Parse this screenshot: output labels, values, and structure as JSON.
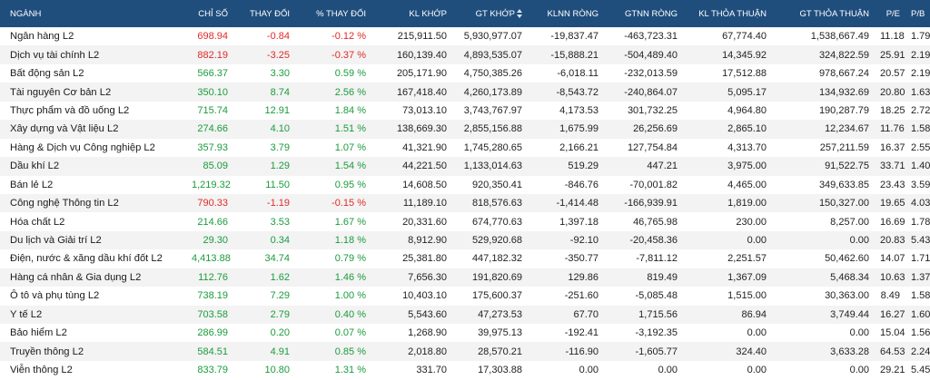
{
  "colors": {
    "header_bg": "#1f4e7d",
    "up": "#1a9c3c",
    "down": "#e02a2a",
    "zebra": "#f3f3f3"
  },
  "columns": [
    "NGÀNH",
    "CHỈ SỐ",
    "THAY ĐỔI",
    "% THAY ĐỔI",
    "KL KHỚP",
    "GT KHỚP",
    "KLNN RÒNG",
    "GTNN RÒNG",
    "KL THỎA THUẬN",
    "GT THỎA THUẬN",
    "P/E",
    "P/B"
  ],
  "sort_icon": "sort-arrows-icon",
  "rows": [
    {
      "name": "Ngân hàng L2",
      "index": "698.94",
      "change": "-0.84",
      "pct": "-0.12 %",
      "trend": "down",
      "kl_khop": "215,911.50",
      "gt_khop": "5,930,977.07",
      "klnn": "-19,837.47",
      "gtnn": "-463,723.31",
      "kl_tt": "67,774.40",
      "gt_tt": "1,538,667.49",
      "pe": "11.18",
      "pb": "1.79"
    },
    {
      "name": "Dịch vụ tài chính L2",
      "index": "882.19",
      "change": "-3.25",
      "pct": "-0.37 %",
      "trend": "down",
      "kl_khop": "160,139.40",
      "gt_khop": "4,893,535.07",
      "klnn": "-15,888.21",
      "gtnn": "-504,489.40",
      "kl_tt": "14,345.92",
      "gt_tt": "324,822.59",
      "pe": "25.91",
      "pb": "2.19"
    },
    {
      "name": "Bất động sản L2",
      "index": "566.37",
      "change": "3.30",
      "pct": "0.59 %",
      "trend": "up",
      "kl_khop": "205,171.90",
      "gt_khop": "4,750,385.26",
      "klnn": "-6,018.11",
      "gtnn": "-232,013.59",
      "kl_tt": "17,512.88",
      "gt_tt": "978,667.24",
      "pe": "20.57",
      "pb": "2.19"
    },
    {
      "name": "Tài nguyên Cơ bản L2",
      "index": "350.10",
      "change": "8.74",
      "pct": "2.56 %",
      "trend": "up",
      "kl_khop": "167,418.40",
      "gt_khop": "4,260,173.89",
      "klnn": "-8,543.72",
      "gtnn": "-240,864.07",
      "kl_tt": "5,095.17",
      "gt_tt": "134,932.69",
      "pe": "20.80",
      "pb": "1.63"
    },
    {
      "name": "Thực phẩm và đồ uống L2",
      "index": "715.74",
      "change": "12.91",
      "pct": "1.84 %",
      "trend": "up",
      "kl_khop": "73,013.10",
      "gt_khop": "3,743,767.97",
      "klnn": "4,173.53",
      "gtnn": "301,732.25",
      "kl_tt": "4,964.80",
      "gt_tt": "190,287.79",
      "pe": "18.25",
      "pb": "2.72"
    },
    {
      "name": "Xây dựng và Vật liệu L2",
      "index": "274.66",
      "change": "4.10",
      "pct": "1.51 %",
      "trend": "up",
      "kl_khop": "138,669.30",
      "gt_khop": "2,855,156.88",
      "klnn": "1,675.99",
      "gtnn": "26,256.69",
      "kl_tt": "2,865.10",
      "gt_tt": "12,234.67",
      "pe": "11.76",
      "pb": "1.58"
    },
    {
      "name": "Hàng & Dịch vụ Công nghiệp L2",
      "index": "357.93",
      "change": "3.79",
      "pct": "1.07 %",
      "trend": "up",
      "kl_khop": "41,321.90",
      "gt_khop": "1,745,280.65",
      "klnn": "2,166.21",
      "gtnn": "127,754.84",
      "kl_tt": "4,313.70",
      "gt_tt": "257,211.59",
      "pe": "16.37",
      "pb": "2.55"
    },
    {
      "name": "Dầu khí L2",
      "index": "85.09",
      "change": "1.29",
      "pct": "1.54 %",
      "trend": "up",
      "kl_khop": "44,221.50",
      "gt_khop": "1,133,014.63",
      "klnn": "519.29",
      "gtnn": "447.21",
      "kl_tt": "3,975.00",
      "gt_tt": "91,522.75",
      "pe": "33.71",
      "pb": "1.40"
    },
    {
      "name": "Bán lẻ L2",
      "index": "1,219.32",
      "change": "11.50",
      "pct": "0.95 %",
      "trend": "up",
      "kl_khop": "14,608.50",
      "gt_khop": "920,350.41",
      "klnn": "-846.76",
      "gtnn": "-70,001.82",
      "kl_tt": "4,465.00",
      "gt_tt": "349,633.85",
      "pe": "23.43",
      "pb": "3.59"
    },
    {
      "name": "Công nghệ Thông tin L2",
      "index": "790.33",
      "change": "-1.19",
      "pct": "-0.15 %",
      "trend": "down",
      "kl_khop": "11,189.10",
      "gt_khop": "818,576.63",
      "klnn": "-1,414.48",
      "gtnn": "-166,939.91",
      "kl_tt": "1,819.00",
      "gt_tt": "150,327.00",
      "pe": "19.65",
      "pb": "4.03"
    },
    {
      "name": "Hóa chất L2",
      "index": "214.66",
      "change": "3.53",
      "pct": "1.67 %",
      "trend": "up",
      "kl_khop": "20,331.60",
      "gt_khop": "674,770.63",
      "klnn": "1,397.18",
      "gtnn": "46,765.98",
      "kl_tt": "230.00",
      "gt_tt": "8,257.00",
      "pe": "16.69",
      "pb": "1.78"
    },
    {
      "name": "Du lịch và Giải trí L2",
      "index": "29.30",
      "change": "0.34",
      "pct": "1.18 %",
      "trend": "up",
      "kl_khop": "8,912.90",
      "gt_khop": "529,920.68",
      "klnn": "-92.10",
      "gtnn": "-20,458.36",
      "kl_tt": "0.00",
      "gt_tt": "0.00",
      "pe": "20.83",
      "pb": "5.43"
    },
    {
      "name": "Điện, nước & xăng dầu khí đốt L2",
      "index": "4,413.88",
      "change": "34.74",
      "pct": "0.79 %",
      "trend": "up",
      "kl_khop": "25,381.80",
      "gt_khop": "447,182.32",
      "klnn": "-350.77",
      "gtnn": "-7,811.12",
      "kl_tt": "2,251.57",
      "gt_tt": "50,462.60",
      "pe": "14.07",
      "pb": "1.71"
    },
    {
      "name": "Hàng cá nhân & Gia dụng L2",
      "index": "112.76",
      "change": "1.62",
      "pct": "1.46 %",
      "trend": "up",
      "kl_khop": "7,656.30",
      "gt_khop": "191,820.69",
      "klnn": "129.86",
      "gtnn": "819.49",
      "kl_tt": "1,367.09",
      "gt_tt": "5,468.34",
      "pe": "10.63",
      "pb": "1.37"
    },
    {
      "name": "Ô tô và phụ tùng L2",
      "index": "738.19",
      "change": "7.29",
      "pct": "1.00 %",
      "trend": "up",
      "kl_khop": "10,403.10",
      "gt_khop": "175,600.37",
      "klnn": "-251.60",
      "gtnn": "-5,085.48",
      "kl_tt": "1,515.00",
      "gt_tt": "30,363.00",
      "pe": "8.49",
      "pb": "1.58"
    },
    {
      "name": "Y tế L2",
      "index": "703.58",
      "change": "2.79",
      "pct": "0.40 %",
      "trend": "up",
      "kl_khop": "5,543.60",
      "gt_khop": "47,273.53",
      "klnn": "67.70",
      "gtnn": "1,715.56",
      "kl_tt": "86.94",
      "gt_tt": "3,749.44",
      "pe": "16.27",
      "pb": "1.60"
    },
    {
      "name": "Bảo hiểm L2",
      "index": "286.99",
      "change": "0.20",
      "pct": "0.07 %",
      "trend": "up",
      "kl_khop": "1,268.90",
      "gt_khop": "39,975.13",
      "klnn": "-192.41",
      "gtnn": "-3,192.35",
      "kl_tt": "0.00",
      "gt_tt": "0.00",
      "pe": "15.04",
      "pb": "1.56"
    },
    {
      "name": "Truyền thông L2",
      "index": "584.51",
      "change": "4.91",
      "pct": "0.85 %",
      "trend": "up",
      "kl_khop": "2,018.80",
      "gt_khop": "28,570.21",
      "klnn": "-116.90",
      "gtnn": "-1,605.77",
      "kl_tt": "324.40",
      "gt_tt": "3,633.28",
      "pe": "64.53",
      "pb": "2.24"
    },
    {
      "name": "Viễn thông L2",
      "index": "833.79",
      "change": "10.80",
      "pct": "1.31 %",
      "trend": "up",
      "kl_khop": "331.70",
      "gt_khop": "17,303.88",
      "klnn": "0.00",
      "gtnn": "0.00",
      "kl_tt": "0.00",
      "gt_tt": "0.00",
      "pe": "29.21",
      "pb": "5.45"
    }
  ]
}
